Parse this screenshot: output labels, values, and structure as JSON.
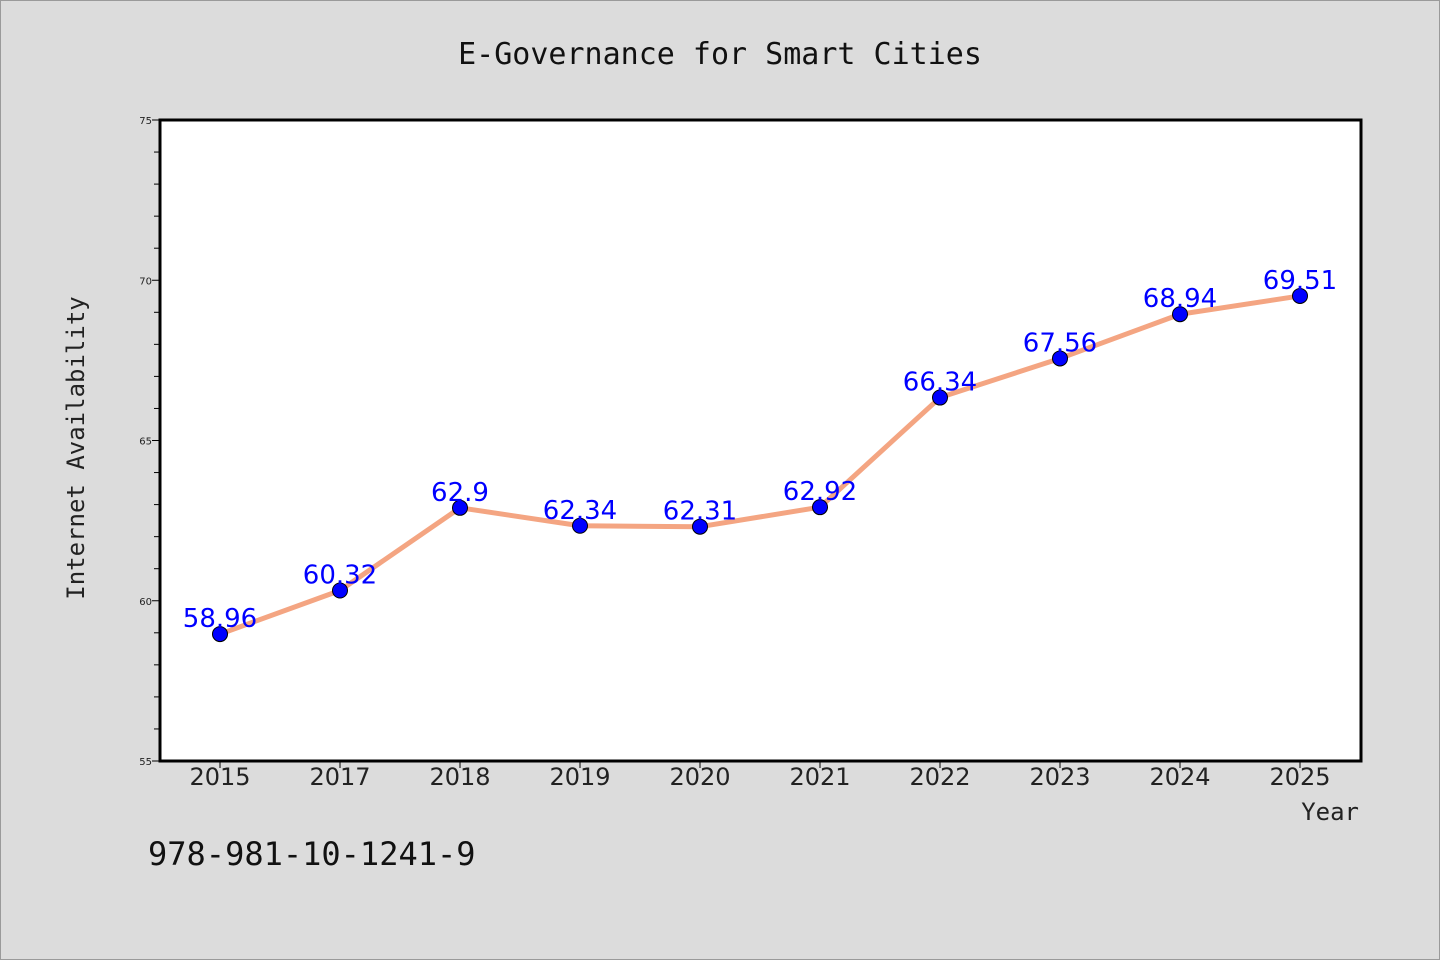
{
  "chart_data": {
    "type": "line",
    "title": "E-Governance for Smart Cities",
    "xlabel": "Year",
    "ylabel": "Internet Availability",
    "categories": [
      "2015",
      "2017",
      "2018",
      "2019",
      "2020",
      "2021",
      "2022",
      "2023",
      "2024",
      "2025"
    ],
    "series": [
      {
        "values": [
          58.96,
          60.32,
          62.9,
          62.34,
          62.31,
          62.92,
          66.34,
          67.56,
          68.94,
          69.51
        ],
        "data_labels": [
          "58.96",
          "60.32",
          "62.9",
          "62.34",
          "62.31",
          "62.92",
          "66.34",
          "67.56",
          "68.94",
          "69.51"
        ],
        "line_color": "#f4a582",
        "marker_color": "#0000ff"
      }
    ],
    "ylim": [
      55,
      75
    ],
    "yticks": [
      55,
      60,
      65,
      70,
      75
    ],
    "grid": false,
    "legend": "none"
  },
  "footer_text": "978-981-10-1241-9",
  "colors": {
    "background": "#dcdcdc",
    "plot_background": "#ffffff",
    "line": "#f4a582",
    "marker": "#0000ff",
    "data_label": "#0000ff"
  }
}
